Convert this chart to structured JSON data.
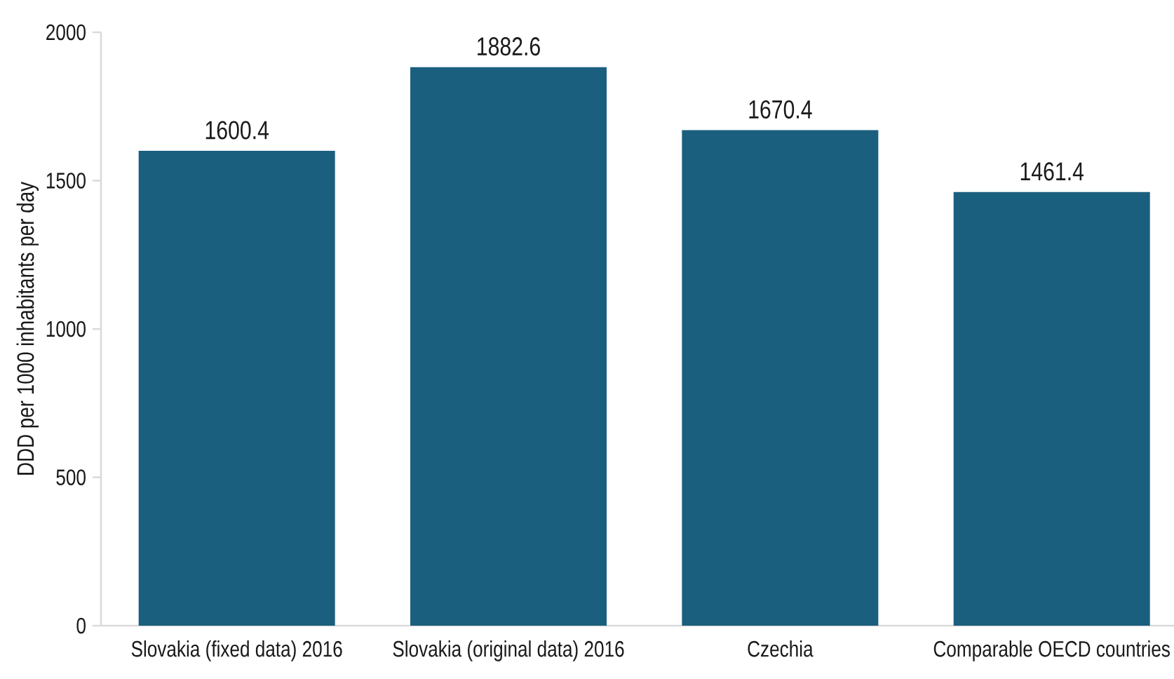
{
  "chart_data": {
    "type": "bar",
    "ylabel": "DDD per 1000 inhabitants per day",
    "categories": [
      "Slovakia (fixed data) 2016",
      "Slovakia (original data) 2016",
      "Czechia",
      "Comparable OECD countries"
    ],
    "values": [
      1600.4,
      1882.6,
      1670.4,
      1461.4
    ],
    "color": "#1b5f7e",
    "ylim": [
      0,
      2000
    ],
    "yticks": [
      0,
      500,
      1000,
      1500,
      2000
    ],
    "data_labels": true
  }
}
